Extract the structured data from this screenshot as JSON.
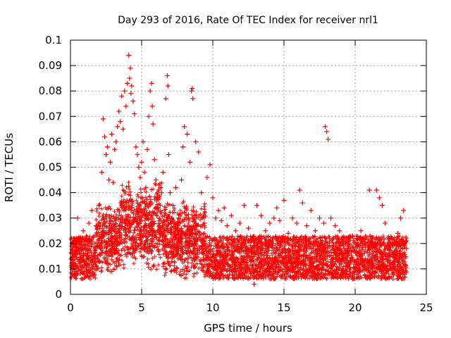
{
  "chart_data": {
    "type": "scatter",
    "title": "Day 293 of 2016, Rate Of TEC Index for receiver nrl1",
    "xlabel": "GPS time / hours",
    "ylabel": "ROTI / TECUs",
    "xlim": [
      0,
      25
    ],
    "ylim": [
      0,
      0.1
    ],
    "xticks": [
      0,
      5,
      10,
      15,
      20,
      25
    ],
    "xtick_labels": [
      "0",
      "5",
      "10",
      "15",
      "20",
      "25"
    ],
    "yticks": [
      0,
      0.01,
      0.02,
      0.03,
      0.04,
      0.05,
      0.06,
      0.07,
      0.08,
      0.09,
      0.1
    ],
    "ytick_labels": [
      "0",
      "0.01",
      "0.02",
      "0.03",
      "0.04",
      "0.05",
      "0.06",
      "0.07",
      "0.08",
      "0.09",
      "0.1"
    ],
    "grid": true,
    "marker": "+",
    "color": "#ff0000",
    "series": [
      {
        "name": "ROTI",
        "x": [
          0.1,
          0.3,
          0.5,
          0.7,
          0.9,
          1.1,
          1.3,
          1.5,
          1.8,
          2.0,
          2.2,
          2.3,
          2.4,
          2.5,
          2.6,
          2.7,
          2.8,
          2.9,
          3.0,
          3.1,
          3.2,
          3.3,
          3.4,
          3.5,
          3.6,
          3.7,
          3.8,
          3.9,
          4.0,
          4.1,
          4.15,
          4.2,
          4.25,
          4.3,
          4.4,
          4.5,
          4.6,
          4.7,
          4.8,
          4.9,
          5.0,
          5.1,
          5.2,
          5.3,
          5.4,
          5.5,
          5.6,
          5.7,
          5.75,
          5.8,
          5.9,
          6.0,
          6.1,
          6.2,
          6.3,
          6.4,
          6.5,
          6.6,
          6.7,
          6.8,
          6.85,
          6.9,
          7.0,
          7.2,
          7.4,
          7.6,
          7.8,
          7.9,
          8.0,
          8.2,
          8.4,
          8.5,
          8.55,
          8.6,
          8.8,
          9.0,
          9.2,
          9.4,
          9.6,
          9.8,
          10.0,
          10.2,
          10.4,
          10.6,
          10.8,
          11.0,
          11.3,
          11.6,
          11.9,
          12.2,
          12.5,
          12.8,
          12.9,
          13.1,
          13.4,
          13.7,
          14.0,
          14.3,
          14.5,
          14.7,
          15.0,
          15.3,
          15.6,
          15.9,
          16.1,
          16.3,
          16.6,
          16.9,
          17.2,
          17.5,
          17.8,
          17.9,
          18.0,
          18.1,
          18.3,
          18.6,
          18.9,
          19.2,
          19.5,
          19.8,
          20.1,
          20.4,
          20.7,
          21.0,
          21.2,
          21.5,
          21.7,
          21.9,
          22.1,
          22.4,
          22.7,
          23.0,
          23.2,
          23.4,
          23.6
        ],
        "y": [
          0.012,
          0.022,
          0.03,
          0.018,
          0.025,
          0.015,
          0.028,
          0.033,
          0.027,
          0.035,
          0.048,
          0.069,
          0.062,
          0.055,
          0.058,
          0.045,
          0.052,
          0.063,
          0.044,
          0.057,
          0.06,
          0.066,
          0.072,
          0.068,
          0.078,
          0.065,
          0.08,
          0.074,
          0.083,
          0.094,
          0.085,
          0.089,
          0.079,
          0.082,
          0.076,
          0.071,
          0.058,
          0.055,
          0.05,
          0.046,
          0.052,
          0.06,
          0.048,
          0.042,
          0.057,
          0.07,
          0.08,
          0.083,
          0.074,
          0.067,
          0.053,
          0.045,
          0.038,
          0.043,
          0.035,
          0.04,
          0.048,
          0.031,
          0.077,
          0.086,
          0.082,
          0.055,
          0.04,
          0.035,
          0.042,
          0.03,
          0.045,
          0.058,
          0.066,
          0.063,
          0.052,
          0.08,
          0.081,
          0.077,
          0.06,
          0.056,
          0.04,
          0.028,
          0.046,
          0.051,
          0.038,
          0.03,
          0.033,
          0.029,
          0.034,
          0.027,
          0.031,
          0.025,
          0.028,
          0.035,
          0.026,
          0.022,
          0.004,
          0.035,
          0.031,
          0.025,
          0.028,
          0.03,
          0.034,
          0.029,
          0.037,
          0.024,
          0.03,
          0.028,
          0.041,
          0.036,
          0.027,
          0.033,
          0.025,
          0.03,
          0.028,
          0.066,
          0.064,
          0.061,
          0.03,
          0.027,
          0.025,
          0.021,
          0.018,
          0.023,
          0.022,
          0.025,
          0.02,
          0.041,
          0.022,
          0.041,
          0.038,
          0.035,
          0.028,
          0.022,
          0.02,
          0.024,
          0.03,
          0.033,
          0.018
        ]
      }
    ]
  }
}
